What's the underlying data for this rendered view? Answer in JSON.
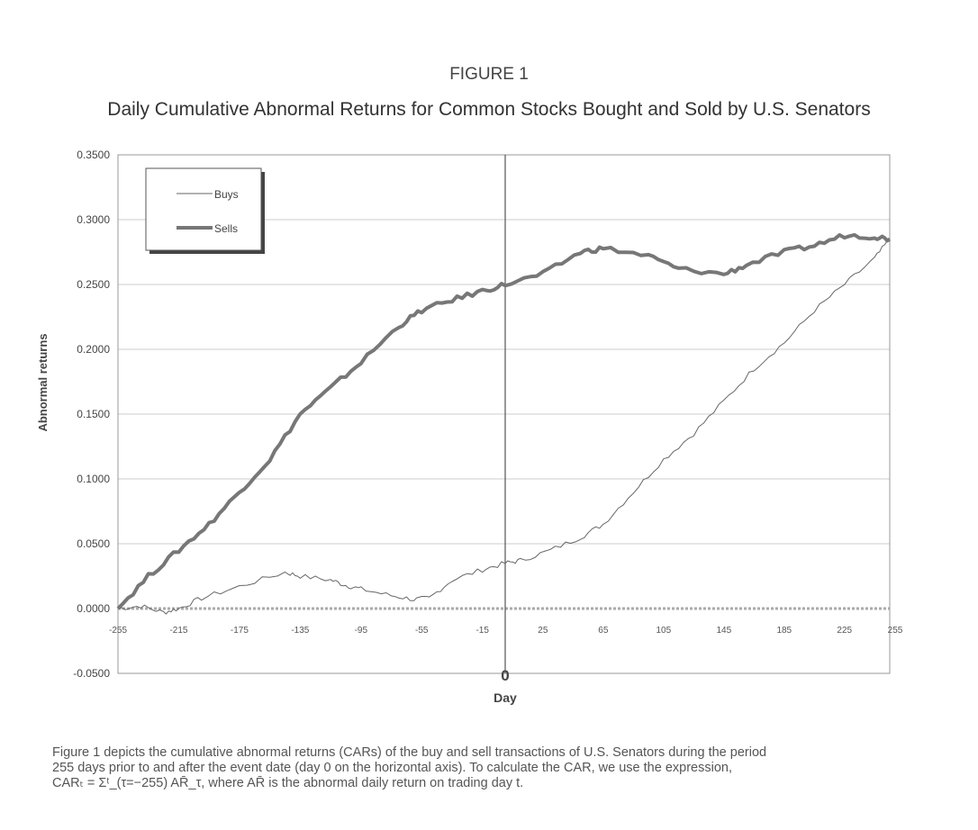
{
  "figure_label": "FIGURE 1",
  "chart_data": {
    "type": "line",
    "title": "Daily Cumulative Abnormal Returns for Common Stocks Bought and Sold by U.S. Senators",
    "xlabel": "Day",
    "ylabel": "Abnormal returns",
    "xlim": [
      -255,
      255
    ],
    "ylim": [
      -0.05,
      0.35
    ],
    "xticks": [
      "-255",
      "-215",
      "-175",
      "-135",
      "-95",
      "-55",
      "-15",
      "25",
      "65",
      "105",
      "145",
      "185",
      "225",
      "255"
    ],
    "yticks": [
      "0.3500",
      "0.3000",
      "0.2500",
      "0.2000",
      "0.1500",
      "0.1000",
      "0.0500",
      "0.0000",
      "-0.0500"
    ],
    "event_day_label": "0",
    "grid": true,
    "legend": "top-left",
    "series": [
      {
        "name": "Buys",
        "x": [
          -255,
          -240,
          -225,
          -215,
          -200,
          -175,
          -145,
          -135,
          -115,
          -105,
          -95,
          -75,
          -60,
          -50,
          -35,
          -15,
          0,
          10,
          30,
          50,
          65,
          85,
          105,
          125,
          145,
          165,
          185,
          205,
          225,
          245,
          255
        ],
        "y": [
          0,
          0.002,
          -0.003,
          0,
          0.008,
          0.017,
          0.028,
          0.025,
          0.022,
          0.018,
          0.015,
          0.01,
          0.007,
          0.008,
          0.022,
          0.03,
          0.035,
          0.037,
          0.045,
          0.055,
          0.065,
          0.09,
          0.115,
          0.135,
          0.16,
          0.185,
          0.205,
          0.23,
          0.25,
          0.27,
          0.285
        ]
      },
      {
        "name": "Sells",
        "x": [
          -255,
          -235,
          -215,
          -195,
          -175,
          -155,
          -135,
          -115,
          -95,
          -70,
          -55,
          -35,
          -15,
          0,
          25,
          50,
          65,
          95,
          115,
          145,
          160,
          185,
          205,
          225,
          245,
          255
        ],
        "y": [
          0,
          0.025,
          0.045,
          0.065,
          0.09,
          0.115,
          0.15,
          0.17,
          0.19,
          0.218,
          0.23,
          0.238,
          0.245,
          0.25,
          0.258,
          0.275,
          0.278,
          0.272,
          0.262,
          0.258,
          0.265,
          0.275,
          0.28,
          0.288,
          0.287,
          0.285
        ]
      }
    ]
  },
  "caption": {
    "line1": "Figure 1 depicts the cumulative abnormal returns (CARs) of the buy and sell transactions of U.S. Senators during the period",
    "line2": "255 days prior to and after the event date (day 0 on the horizontal axis). To calculate the CAR, we use the expression,",
    "line3": "CARₜ = Σᵗ_(τ=−255) AR̄_τ, where AR̄ is the abnormal daily return on trading day t."
  }
}
